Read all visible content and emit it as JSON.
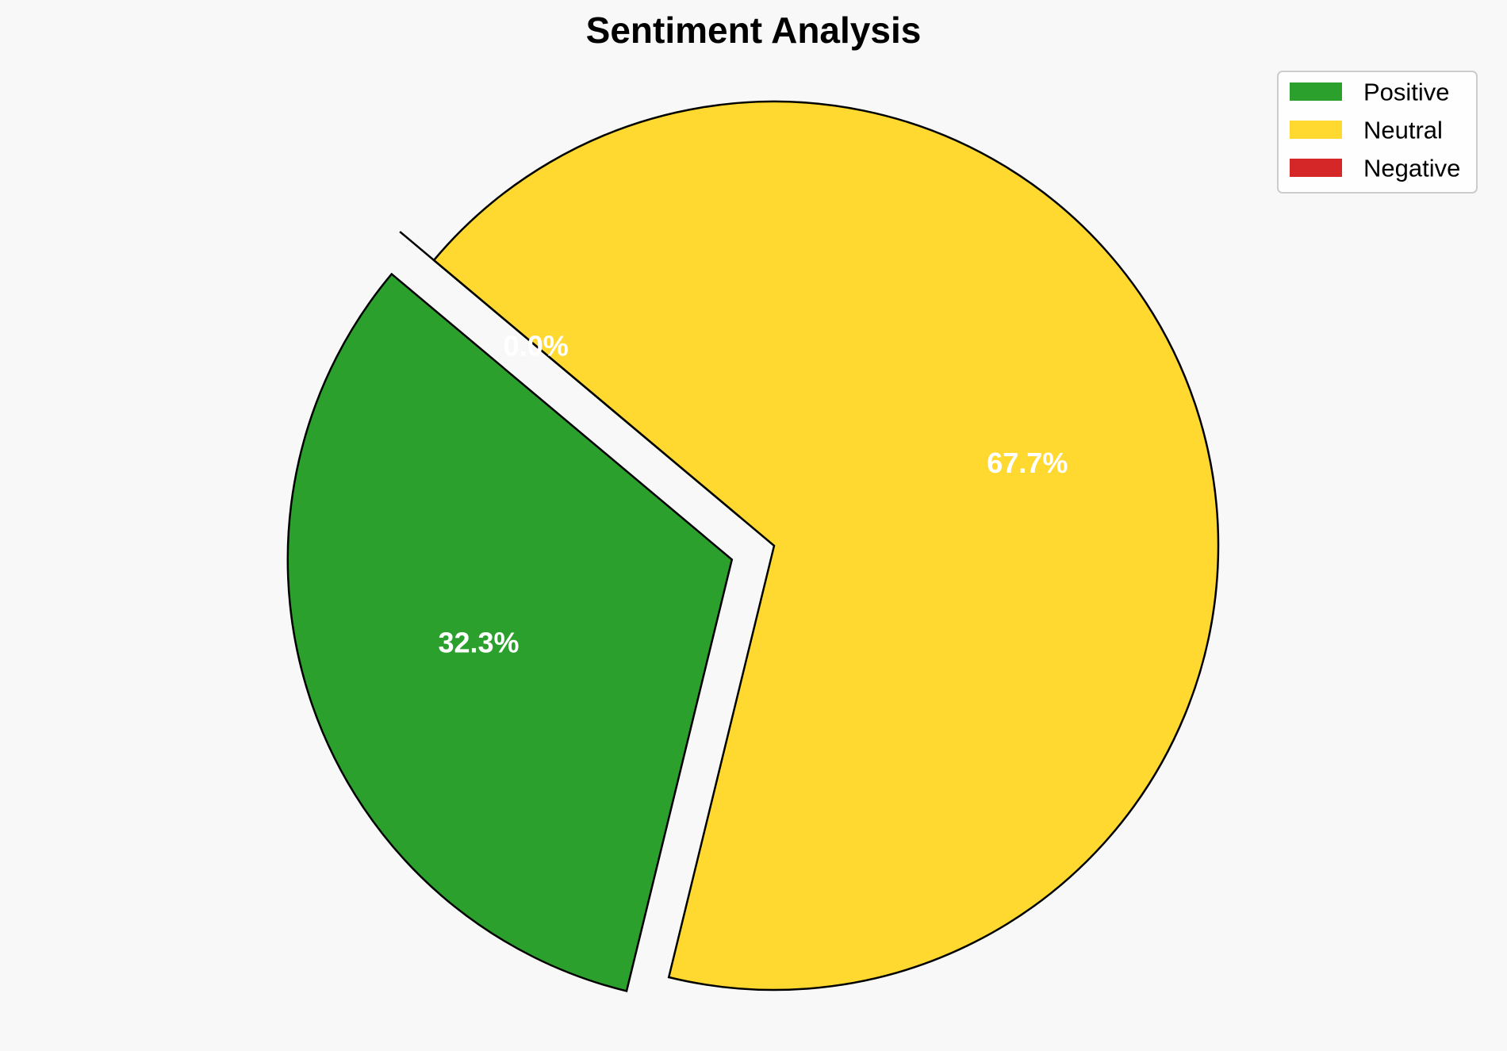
{
  "chart_data": {
    "type": "pie",
    "title": "Sentiment Analysis",
    "categories": [
      "Positive",
      "Neutral",
      "Negative"
    ],
    "values": [
      32.3,
      67.7,
      0.0
    ],
    "labels": [
      "32.3%",
      "67.7%",
      "0.0%"
    ],
    "colors": [
      "#2ca02c",
      "#ffd92f",
      "#d62728"
    ],
    "exploded": [
      "Positive",
      "Negative"
    ],
    "legend_position": "top-right"
  }
}
